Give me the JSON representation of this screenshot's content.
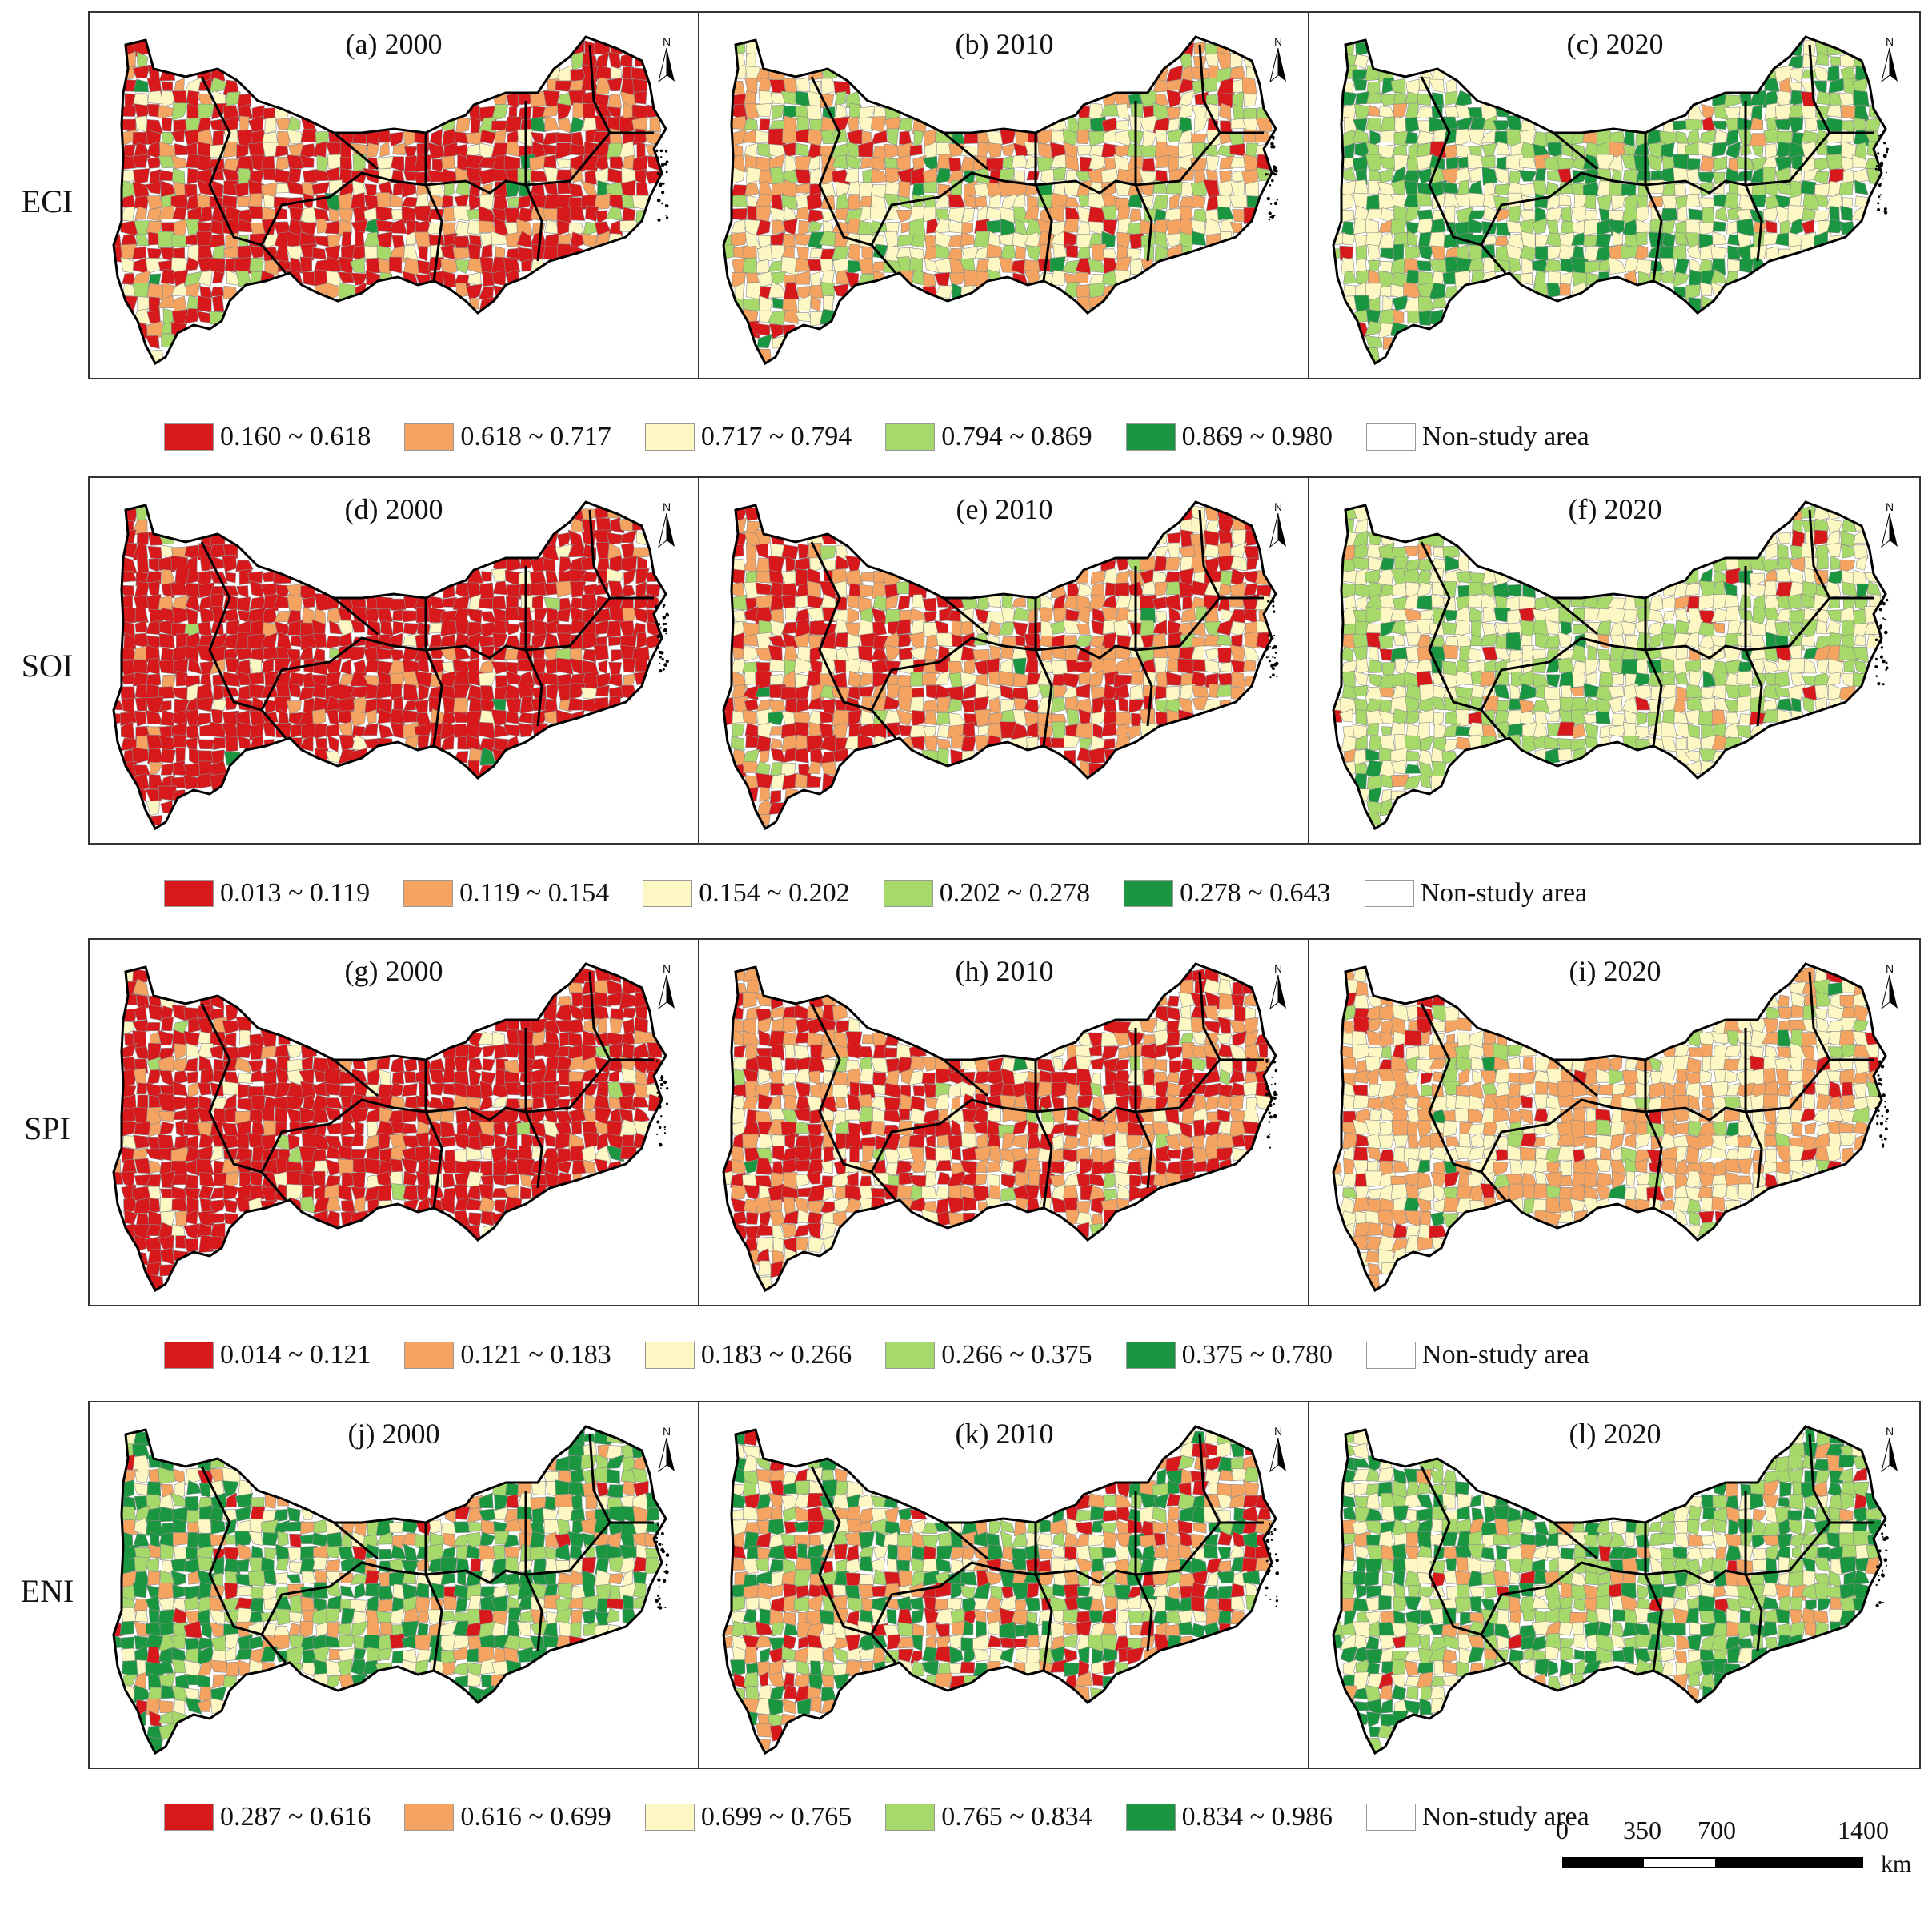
{
  "colors": {
    "class1": "#d7191c",
    "class2": "#f4a460",
    "class3": "#fdf7c3",
    "class4": "#a6d96a",
    "class5": "#1a9641",
    "nonstudy": "#ffffff"
  },
  "north_letter": "N",
  "rows": [
    {
      "label": "ECI",
      "panels": [
        {
          "title": "(a) 2000",
          "mix": [
            0.62,
            0.18,
            0.12,
            0.06,
            0.02
          ]
        },
        {
          "title": "(b) 2010",
          "mix": [
            0.14,
            0.32,
            0.28,
            0.2,
            0.06
          ]
        },
        {
          "title": "(c) 2020",
          "mix": [
            0.01,
            0.04,
            0.33,
            0.34,
            0.28
          ]
        }
      ],
      "legend": [
        "0.160 ~ 0.618",
        "0.618 ~ 0.717",
        "0.717 ~ 0.794",
        "0.794 ~ 0.869",
        "0.869 ~ 0.980",
        "Non-study area"
      ]
    },
    {
      "label": "SOI",
      "panels": [
        {
          "title": "(d) 2000",
          "mix": [
            0.86,
            0.08,
            0.04,
            0.015,
            0.005
          ]
        },
        {
          "title": "(e) 2010",
          "mix": [
            0.4,
            0.3,
            0.22,
            0.07,
            0.01
          ]
        },
        {
          "title": "(f) 2020",
          "mix": [
            0.02,
            0.07,
            0.45,
            0.4,
            0.06
          ]
        }
      ],
      "legend": [
        "0.013 ~ 0.119",
        "0.119 ~ 0.154",
        "0.154 ~ 0.202",
        "0.202 ~ 0.278",
        "0.278 ~ 0.643",
        "Non-study area"
      ]
    },
    {
      "label": "SPI",
      "panels": [
        {
          "title": "(g) 2000",
          "mix": [
            0.8,
            0.11,
            0.07,
            0.015,
            0.005
          ]
        },
        {
          "title": "(h) 2010",
          "mix": [
            0.46,
            0.3,
            0.2,
            0.035,
            0.005
          ]
        },
        {
          "title": "(i) 2020",
          "mix": [
            0.08,
            0.4,
            0.44,
            0.07,
            0.01
          ]
        }
      ],
      "legend": [
        "0.014 ~ 0.121",
        "0.121 ~ 0.183",
        "0.183 ~ 0.266",
        "0.266 ~ 0.375",
        "0.375 ~ 0.780",
        "Non-study area"
      ]
    },
    {
      "label": "ENI",
      "panels": [
        {
          "title": "(j) 2000",
          "mix": [
            0.05,
            0.17,
            0.2,
            0.2,
            0.38
          ]
        },
        {
          "title": "(k) 2010",
          "mix": [
            0.22,
            0.26,
            0.16,
            0.16,
            0.2
          ]
        },
        {
          "title": "(l) 2020",
          "mix": [
            0.02,
            0.1,
            0.22,
            0.33,
            0.33
          ]
        }
      ],
      "legend": [
        "0.287 ~ 0.616",
        "0.616 ~ 0.699",
        "0.699 ~ 0.765",
        "0.765 ~ 0.834",
        "0.834 ~ 0.986",
        "Non-study area"
      ]
    }
  ],
  "scalebar": {
    "labels": [
      "0",
      "350",
      "700",
      "1400"
    ],
    "unit": "km"
  }
}
